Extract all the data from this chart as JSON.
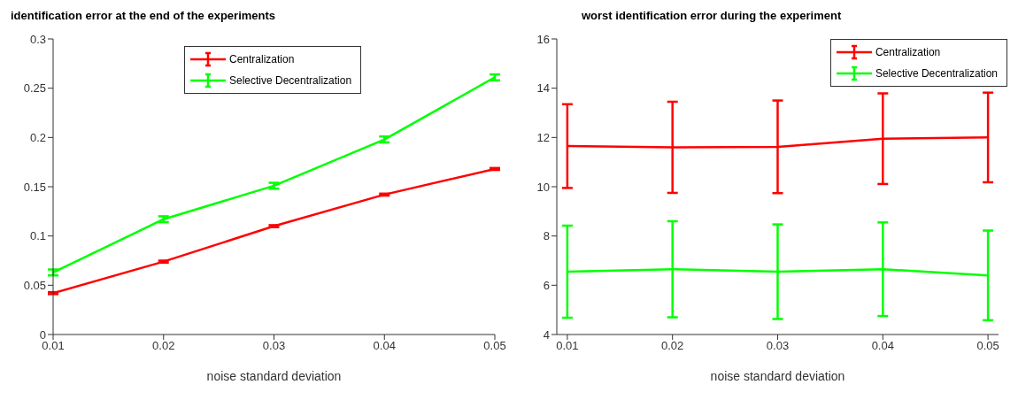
{
  "chart_data": [
    {
      "type": "line",
      "title": "identification error at the end of the experiments",
      "xlabel": "noise standard deviation",
      "x": [
        0.01,
        0.02,
        0.03,
        0.04,
        0.05
      ],
      "xlim": [
        0.01,
        0.05
      ],
      "xticks": [
        0.01,
        0.02,
        0.03,
        0.04,
        0.05
      ],
      "ylim": [
        0,
        0.3
      ],
      "yticks": [
        0,
        0.05,
        0.1,
        0.15,
        0.2,
        0.25,
        0.3
      ],
      "grid": false,
      "legend": "top",
      "marker": "none",
      "line_style": "solid",
      "series": [
        {
          "name": "Centralization",
          "color": "#ff0000",
          "values": [
            0.042,
            0.074,
            0.11,
            0.142,
            0.168
          ],
          "errors": [
            0.001,
            0.001,
            0.001,
            0.001,
            0.001
          ]
        },
        {
          "name": "Selective Decentralization",
          "color": "#00ff00",
          "values": [
            0.063,
            0.117,
            0.151,
            0.198,
            0.261
          ],
          "errors": [
            0.003,
            0.003,
            0.003,
            0.003,
            0.003
          ]
        }
      ]
    },
    {
      "type": "line",
      "title": "worst identification error during the experiment",
      "xlabel": "noise standard deviation",
      "x": [
        0.01,
        0.02,
        0.03,
        0.04,
        0.05
      ],
      "xlim": [
        0.009,
        0.051
      ],
      "xticks": [
        0.01,
        0.02,
        0.03,
        0.04,
        0.05
      ],
      "ylim": [
        4,
        16
      ],
      "yticks": [
        4,
        6,
        8,
        10,
        12,
        14,
        16
      ],
      "grid": false,
      "legend": "top right",
      "marker": "none",
      "line_style": "solid",
      "series": [
        {
          "name": "Centralization",
          "color": "#ff0000",
          "values": [
            11.65,
            11.6,
            11.62,
            11.95,
            12.0
          ],
          "errors": [
            1.7,
            1.85,
            1.88,
            1.84,
            1.82
          ]
        },
        {
          "name": "Selective Decentralization",
          "color": "#00ff00",
          "values": [
            6.55,
            6.65,
            6.55,
            6.65,
            6.4
          ],
          "errors": [
            1.87,
            1.95,
            1.92,
            1.9,
            1.82
          ]
        }
      ]
    }
  ]
}
